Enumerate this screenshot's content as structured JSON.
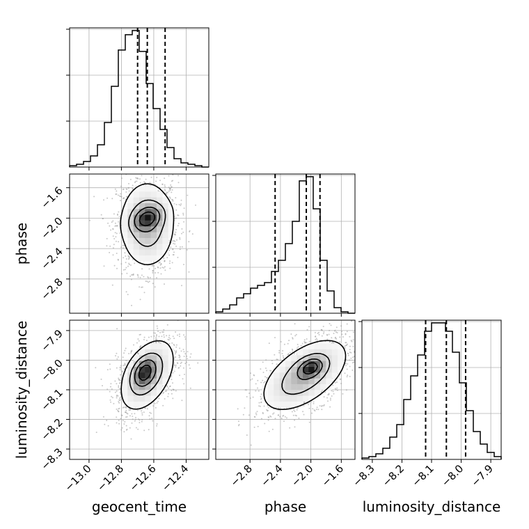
{
  "chart_data": {
    "type": "corner",
    "parameters": [
      "geocent_time",
      "phase",
      "luminosity_distance"
    ],
    "axis_labels": {
      "geocent_time": "geocent_time",
      "phase": "phase",
      "luminosity_distance": "luminosity_distance"
    },
    "ranges": {
      "geocent_time": [
        -13.12,
        -12.26
      ],
      "phase": [
        -3.25,
        -1.42
      ],
      "luminosity_distance": [
        -8.335,
        -7.865
      ]
    },
    "ticks": {
      "geocent_time": [
        -13.0,
        -12.8,
        -12.6,
        -12.4
      ],
      "phase": [
        -2.8,
        -2.4,
        -2.0,
        -1.6
      ],
      "luminosity_distance": [
        -8.3,
        -8.2,
        -8.1,
        -8.0,
        -7.9
      ]
    },
    "tick_labels": {
      "geocent_time": [
        "−13.0",
        "−12.8",
        "−12.6",
        "−12.4"
      ],
      "phase": [
        "−2.8",
        "−2.4",
        "−2.0",
        "−1.6"
      ],
      "luminosity_distance": [
        "−8.3",
        "−8.2",
        "−8.1",
        "−8.0",
        "−7.9"
      ]
    },
    "quantiles": {
      "geocent_time": [
        -12.7,
        -12.64,
        -12.53
      ],
      "phase": [
        -2.47,
        -2.06,
        -1.88
      ],
      "luminosity_distance": [
        -8.12,
        -8.05,
        -7.985
      ]
    },
    "histograms": {
      "geocent_time": {
        "edges": [
          -13.12,
          -13.077,
          -13.034,
          -12.991,
          -12.948,
          -12.905,
          -12.862,
          -12.819,
          -12.776,
          -12.733,
          -12.69,
          -12.647,
          -12.604,
          -12.561,
          -12.518,
          -12.475,
          -12.432,
          -12.389,
          -12.346,
          -12.303,
          -12.26
        ],
        "counts": [
          1,
          2,
          4,
          8,
          16,
          32,
          58,
          84,
          95,
          98,
          83,
          60,
          42,
          27,
          14,
          6,
          3,
          2,
          1,
          0
        ]
      },
      "phase": {
        "edges": [
          -3.25,
          -3.1585,
          -3.067,
          -2.9755,
          -2.884,
          -2.7925,
          -2.701,
          -2.6095,
          -2.518,
          -2.4265,
          -2.335,
          -2.2435,
          -2.152,
          -2.0605,
          -1.969,
          -1.8775,
          -1.786,
          -1.6945,
          -1.603,
          -1.5115,
          -1.42
        ],
        "counts": [
          1,
          3,
          6,
          11,
          14,
          18,
          20,
          22,
          30,
          38,
          50,
          66,
          95,
          98,
          75,
          38,
          16,
          4,
          1,
          0
        ]
      },
      "luminosity_distance": {
        "edges": [
          -8.335,
          -8.3115,
          -8.288,
          -8.2645,
          -8.241,
          -8.2175,
          -8.194,
          -8.1705,
          -8.147,
          -8.1235,
          -8.1,
          -8.0765,
          -8.053,
          -8.0295,
          -8.006,
          -7.9825,
          -7.959,
          -7.9355,
          -7.912,
          -7.8885,
          -7.865
        ],
        "counts": [
          1,
          2,
          4,
          8,
          16,
          25,
          43,
          60,
          75,
          92,
          98,
          98,
          92,
          77,
          55,
          35,
          20,
          11,
          5,
          2
        ]
      }
    },
    "pairs": [
      {
        "x": "geocent_time",
        "y": "phase",
        "mean": [
          -12.64,
          -2.08
        ],
        "std": [
          0.09,
          0.3
        ],
        "corr": 0.0,
        "mode": [
          -12.64,
          -2.0
        ],
        "mode_std": [
          0.06,
          0.1
        ]
      },
      {
        "x": "geocent_time",
        "y": "luminosity_distance",
        "mean": [
          -12.64,
          -8.05
        ],
        "std": [
          0.09,
          0.065
        ],
        "corr": 0.45,
        "mode": [
          -12.66,
          -8.04
        ],
        "mode_std": [
          0.045,
          0.03
        ]
      },
      {
        "x": "phase",
        "y": "luminosity_distance",
        "mean": [
          -2.08,
          -8.05
        ],
        "std": [
          0.3,
          0.065
        ],
        "corr": 0.55,
        "mode": [
          -2.0,
          -8.025
        ],
        "mode_std": [
          0.1,
          0.02
        ]
      }
    ],
    "contour_levels": [
      0.8,
      0.55,
      0.3,
      0.1
    ],
    "grid": true
  }
}
